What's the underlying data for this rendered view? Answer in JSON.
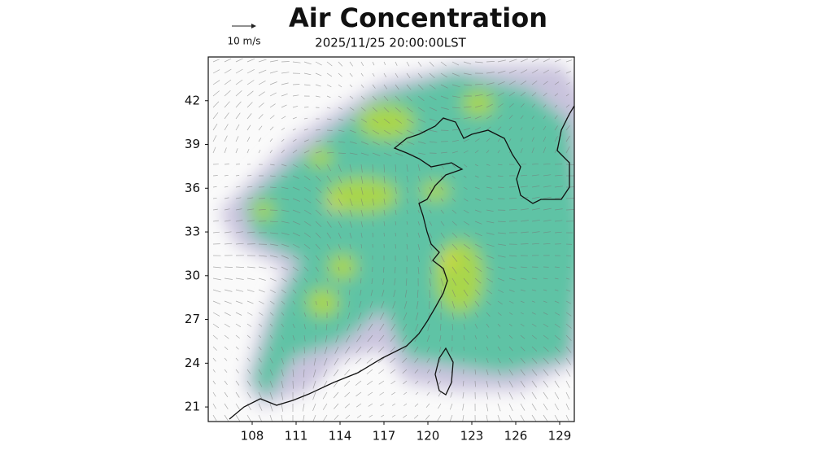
{
  "chart_data": {
    "type": "map",
    "title": "Air Concentration",
    "subtitle": "2025/11/25 20:00:00LST",
    "wind_key": "10 m/s",
    "xlim": [
      105,
      130
    ],
    "ylim": [
      20,
      45
    ],
    "xticks": [
      108,
      111,
      114,
      117,
      120,
      123,
      126,
      129
    ],
    "yticks": [
      21,
      24,
      27,
      30,
      33,
      36,
      39,
      42
    ]
  }
}
